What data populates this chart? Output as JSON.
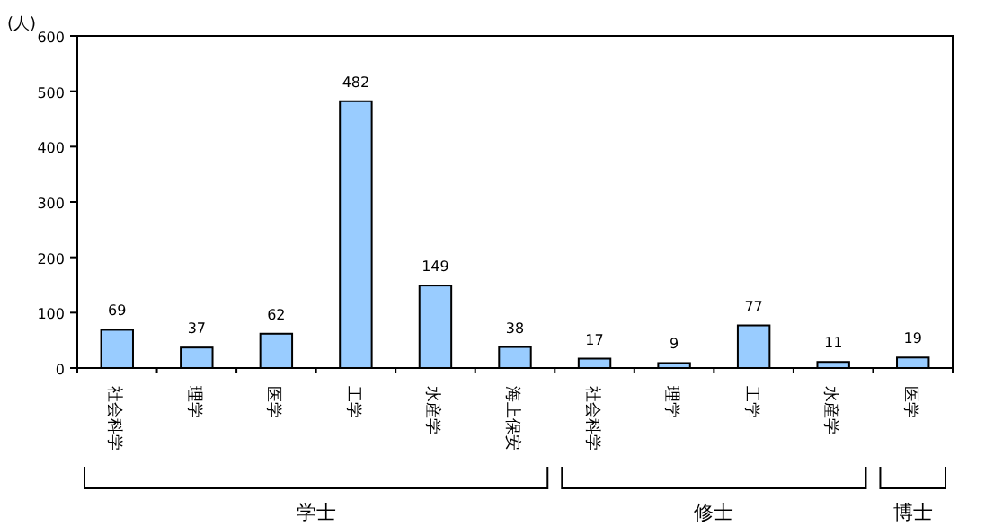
{
  "chart_data": {
    "type": "bar",
    "ylabel": "(人)",
    "categories": [
      "社会科学",
      "理学",
      "医学",
      "工学",
      "水産学",
      "海上保安",
      "社会科学",
      "理学",
      "工学",
      "水産学",
      "医学"
    ],
    "values": [
      69,
      37,
      62,
      482,
      149,
      38,
      17,
      9,
      77,
      11,
      19
    ],
    "color": "#99ccff",
    "ylim": [
      0,
      600
    ],
    "yticks": [
      0,
      100,
      200,
      300,
      400,
      500,
      600
    ],
    "data_labels": true,
    "annotations": [
      "学士",
      "修士",
      "博士"
    ]
  }
}
